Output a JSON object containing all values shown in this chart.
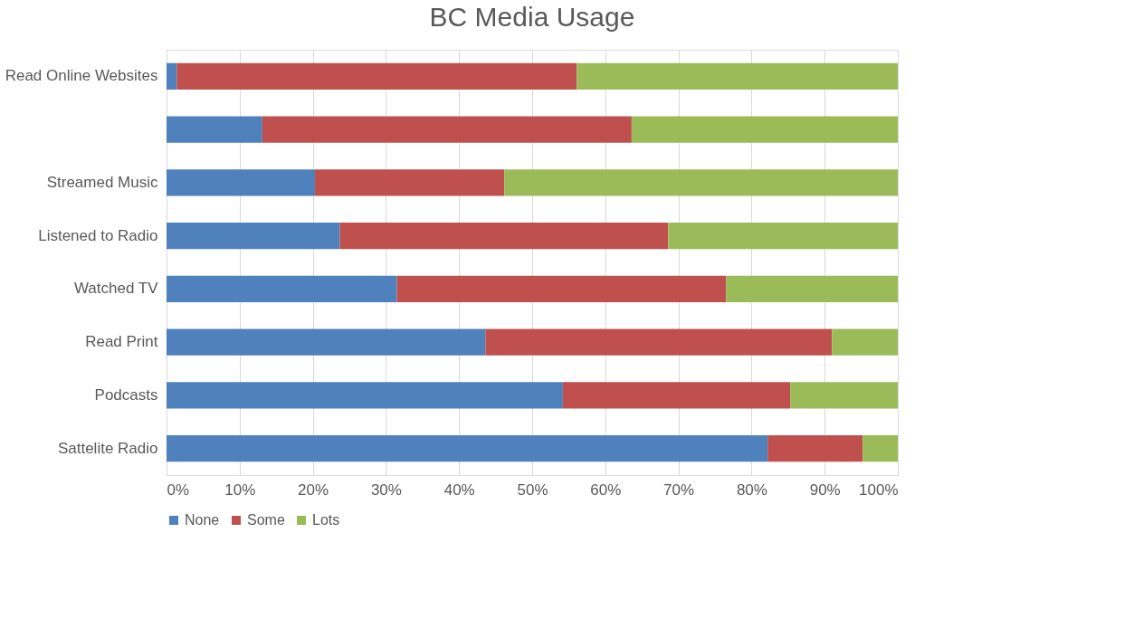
{
  "chart_data": {
    "type": "bar",
    "orientation": "horizontal",
    "stacked": true,
    "title": "BC Media Usage",
    "categories": [
      "Read Online Websites",
      null,
      "Streamed Music",
      "Listened to Radio",
      "Watched TV",
      "Read Print",
      "Podcasts",
      "Sattelite Radio"
    ],
    "series": [
      {
        "name": "None",
        "color": "#4f81bd",
        "values": [
          1.4,
          13.1,
          20.3,
          23.7,
          31.5,
          43.6,
          54.2,
          82.2
        ]
      },
      {
        "name": "Some",
        "color": "#c0504d",
        "values": [
          54.7,
          50.5,
          25.9,
          44.9,
          45.0,
          47.4,
          31.1,
          13.0
        ]
      },
      {
        "name": "Lots",
        "color": "#9bbb59",
        "values": [
          43.9,
          36.4,
          53.8,
          31.4,
          23.5,
          9.0,
          14.7,
          4.8
        ]
      }
    ],
    "xlim": [
      0,
      100
    ],
    "xticks": [
      {
        "value": 0,
        "label": "0%"
      },
      {
        "value": 10,
        "label": "10%"
      },
      {
        "value": 20,
        "label": "20%"
      },
      {
        "value": 30,
        "label": "30%"
      },
      {
        "value": 40,
        "label": "40%"
      },
      {
        "value": 50,
        "label": "50%"
      },
      {
        "value": 60,
        "label": "60%"
      },
      {
        "value": 70,
        "label": "70%"
      },
      {
        "value": 80,
        "label": "80%"
      },
      {
        "value": 90,
        "label": "90%"
      },
      {
        "value": 100,
        "label": "100%"
      }
    ],
    "grid": "x",
    "legend": "bottom"
  }
}
